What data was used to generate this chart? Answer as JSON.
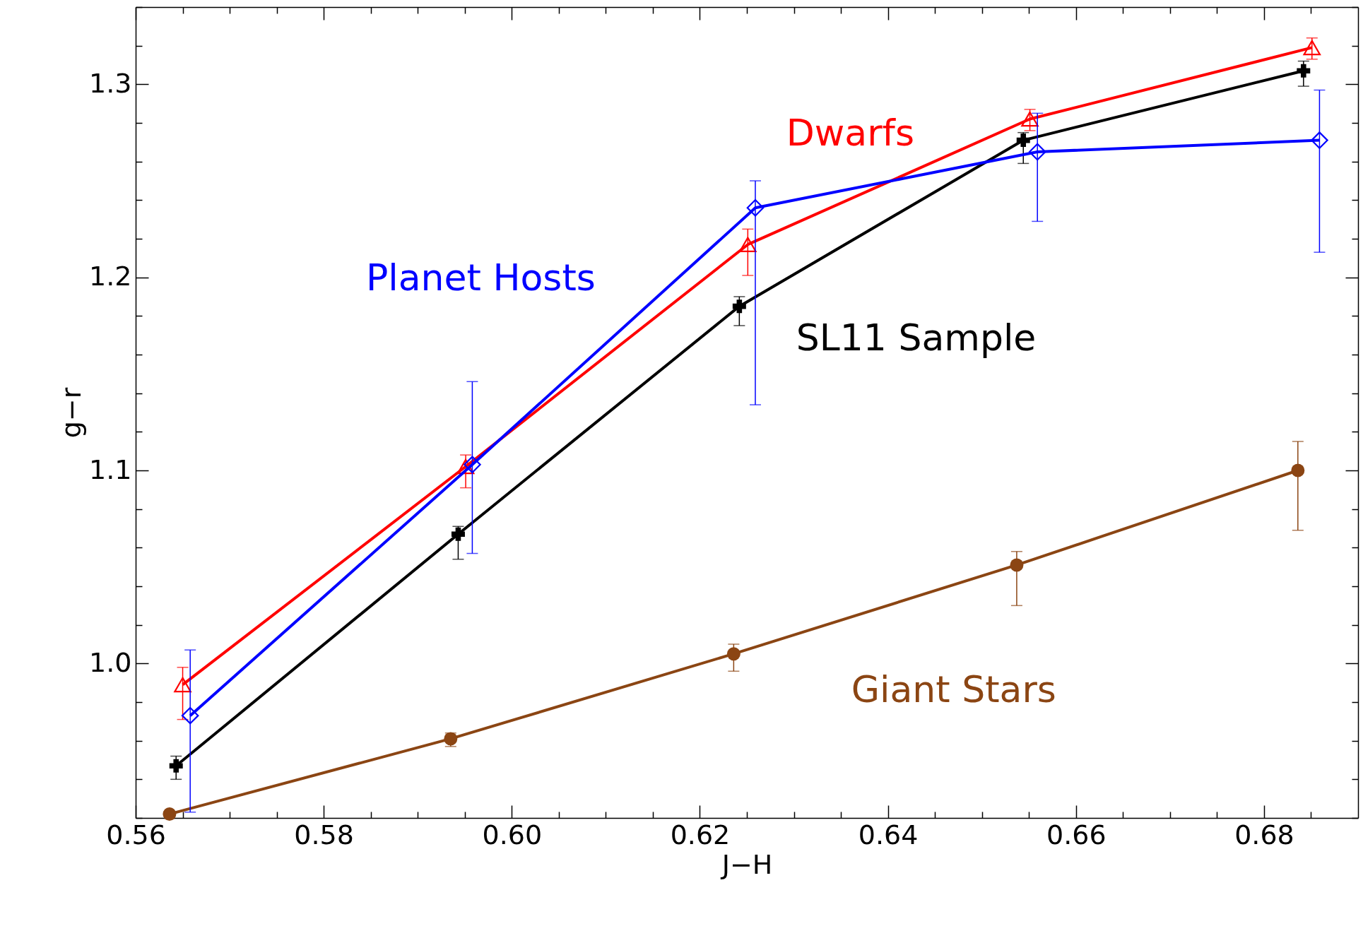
{
  "chart_data": {
    "type": "line",
    "xlabel": "J−H",
    "ylabel": "g−r",
    "xlim": [
      0.56,
      0.69
    ],
    "ylim": [
      0.92,
      1.34
    ],
    "xticks": [
      {
        "value": 0.56,
        "label": "0.56"
      },
      {
        "value": 0.565,
        "label": null
      },
      {
        "value": 0.57,
        "label": null
      },
      {
        "value": 0.575,
        "label": null
      },
      {
        "value": 0.58,
        "label": "0.58"
      },
      {
        "value": 0.585,
        "label": null
      },
      {
        "value": 0.59,
        "label": null
      },
      {
        "value": 0.595,
        "label": null
      },
      {
        "value": 0.6,
        "label": "0.60"
      },
      {
        "value": 0.605,
        "label": null
      },
      {
        "value": 0.61,
        "label": null
      },
      {
        "value": 0.615,
        "label": null
      },
      {
        "value": 0.62,
        "label": "0.62"
      },
      {
        "value": 0.625,
        "label": null
      },
      {
        "value": 0.63,
        "label": null
      },
      {
        "value": 0.635,
        "label": null
      },
      {
        "value": 0.64,
        "label": "0.64"
      },
      {
        "value": 0.645,
        "label": null
      },
      {
        "value": 0.65,
        "label": null
      },
      {
        "value": 0.655,
        "label": null
      },
      {
        "value": 0.66,
        "label": "0.66"
      },
      {
        "value": 0.665,
        "label": null
      },
      {
        "value": 0.67,
        "label": null
      },
      {
        "value": 0.675,
        "label": null
      },
      {
        "value": 0.68,
        "label": "0.68"
      },
      {
        "value": 0.685,
        "label": null
      }
    ],
    "yticks": [
      {
        "value": 0.92,
        "label": null
      },
      {
        "value": 0.94,
        "label": null
      },
      {
        "value": 0.96,
        "label": null
      },
      {
        "value": 0.98,
        "label": null
      },
      {
        "value": 1.0,
        "label": "1.0"
      },
      {
        "value": 1.02,
        "label": null
      },
      {
        "value": 1.04,
        "label": null
      },
      {
        "value": 1.06,
        "label": null
      },
      {
        "value": 1.08,
        "label": null
      },
      {
        "value": 1.1,
        "label": "1.1"
      },
      {
        "value": 1.12,
        "label": null
      },
      {
        "value": 1.14,
        "label": null
      },
      {
        "value": 1.16,
        "label": null
      },
      {
        "value": 1.18,
        "label": null
      },
      {
        "value": 1.2,
        "label": "1.2"
      },
      {
        "value": 1.22,
        "label": null
      },
      {
        "value": 1.24,
        "label": null
      },
      {
        "value": 1.26,
        "label": null
      },
      {
        "value": 1.28,
        "label": null
      },
      {
        "value": 1.3,
        "label": "1.3"
      },
      {
        "value": 1.32,
        "label": null
      },
      {
        "value": 1.34,
        "label": null
      }
    ],
    "grid": false,
    "series": [
      {
        "name": "Giant Stars",
        "color": "#8b4513",
        "marker": "circle",
        "x": [
          0.5636,
          0.5935,
          0.6236,
          0.6537,
          0.6836
        ],
        "values": [
          0.922,
          0.961,
          1.005,
          1.051,
          1.1
        ],
        "errors": [
          null,
          [
            0.957,
            0.964
          ],
          [
            0.996,
            1.01
          ],
          [
            1.03,
            1.058
          ],
          [
            1.069,
            1.115
          ]
        ]
      },
      {
        "name": "SL11 Sample",
        "color": "#000000",
        "marker": "cross",
        "x": [
          0.5643,
          0.5943,
          0.6242,
          0.6544,
          0.6842
        ],
        "values": [
          0.947,
          1.067,
          1.185,
          1.271,
          1.307
        ],
        "errors": [
          [
            0.94,
            0.952
          ],
          [
            1.054,
            1.071
          ],
          [
            1.175,
            1.19
          ],
          [
            1.259,
            1.275
          ],
          [
            1.299,
            1.312
          ]
        ]
      },
      {
        "name": "Dwarfs",
        "color": "#ff0000",
        "marker": "triangle",
        "x": [
          0.565,
          0.5951,
          0.6251,
          0.6551,
          0.6851
        ],
        "values": [
          0.989,
          1.102,
          1.217,
          1.282,
          1.319
        ],
        "errors": [
          [
            0.971,
            0.998
          ],
          [
            1.091,
            1.108
          ],
          [
            1.201,
            1.225
          ],
          [
            1.276,
            1.287
          ],
          [
            1.313,
            1.324
          ]
        ]
      },
      {
        "name": "Planet Hosts",
        "color": "#0000ff",
        "marker": "diamond",
        "x": [
          0.5658,
          0.5958,
          0.6259,
          0.6559,
          0.6859
        ],
        "values": [
          0.973,
          1.103,
          1.236,
          1.265,
          1.271
        ],
        "errors": [
          [
            0.923,
            1.007
          ],
          [
            1.057,
            1.146
          ],
          [
            1.134,
            1.25
          ],
          [
            1.229,
            1.285
          ],
          [
            1.213,
            1.297
          ]
        ]
      }
    ]
  }
}
